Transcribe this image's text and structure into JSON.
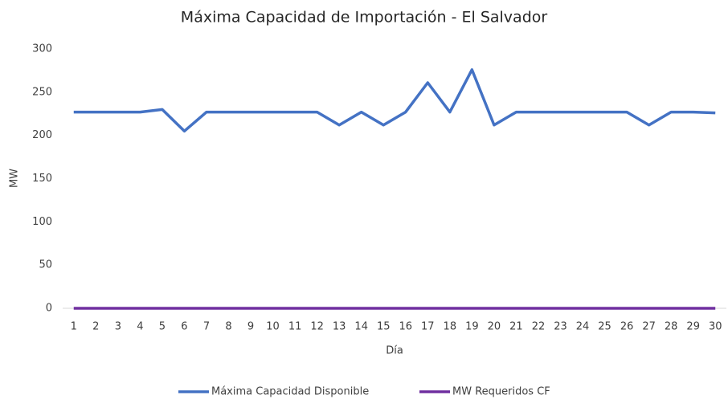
{
  "chart_data": {
    "type": "line",
    "title": "Máxima Capacidad de Importación - El Salvador",
    "x_label": "Día",
    "y_label": "MW",
    "categories": [
      1,
      2,
      3,
      4,
      5,
      6,
      7,
      8,
      9,
      10,
      11,
      12,
      13,
      14,
      15,
      16,
      17,
      18,
      19,
      20,
      21,
      22,
      23,
      24,
      25,
      26,
      27,
      28,
      29,
      30
    ],
    "series": [
      {
        "name": "Máxima Capacidad Disponible",
        "color": "#4472c4",
        "values": [
          227,
          227,
          227,
          227,
          230,
          205,
          227,
          227,
          227,
          227,
          227,
          227,
          212,
          227,
          212,
          227,
          261,
          227,
          276,
          212,
          227,
          227,
          227,
          227,
          227,
          227,
          212,
          227,
          227,
          226
        ]
      },
      {
        "name": "MW Requeridos CF",
        "color": "#7030a0",
        "values": [
          0,
          0,
          0,
          0,
          0,
          0,
          0,
          0,
          0,
          0,
          0,
          0,
          0,
          0,
          0,
          0,
          0,
          0,
          0,
          0,
          0,
          0,
          0,
          0,
          0,
          0,
          0,
          0,
          0,
          0
        ]
      }
    ],
    "ylim": [
      0,
      300
    ],
    "yticks": [
      0,
      50,
      100,
      150,
      200,
      250,
      300
    ],
    "grid": false,
    "legend": "bottom"
  }
}
